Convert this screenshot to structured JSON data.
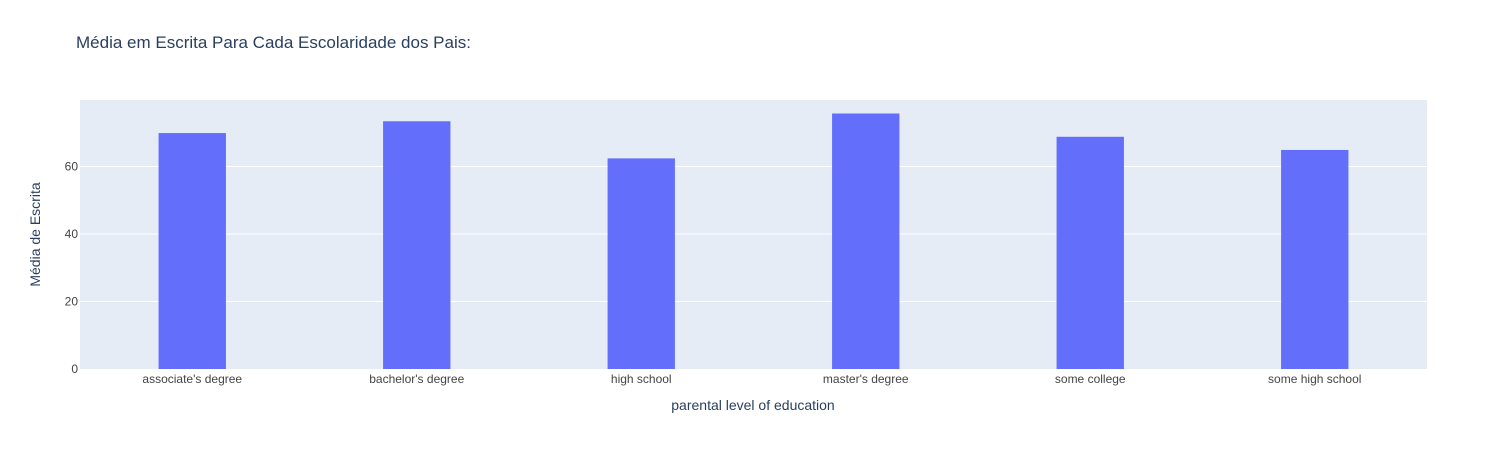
{
  "chart_data": {
    "type": "bar",
    "title": "Média em Escrita Para Cada Escolaridade dos Pais:",
    "xlabel": "parental level of education",
    "ylabel": "Média de Escrita",
    "categories": [
      "associate's degree",
      "bachelor's degree",
      "high school",
      "master's degree",
      "some college",
      "some high school"
    ],
    "values": [
      69.9,
      73.4,
      62.4,
      75.7,
      68.8,
      64.9
    ],
    "ylim": [
      0,
      79.7
    ],
    "yticks": [
      0,
      20,
      40,
      60
    ],
    "grid": true,
    "colors": {
      "bar": "#636efa",
      "plot_bg": "#e5ecf6",
      "grid": "#ffffff",
      "text": "#2a3f5f",
      "tick": "#444444"
    }
  }
}
